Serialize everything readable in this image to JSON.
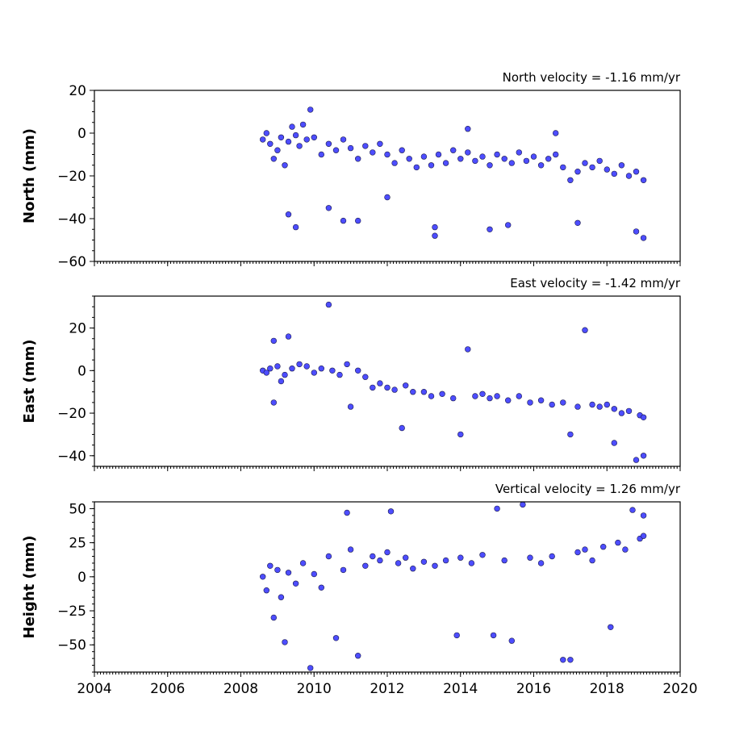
{
  "chart_data": {
    "type": "scatter",
    "point_color": "#4d4dff",
    "point_edge_color": "#1a1a4d",
    "x_axis": {
      "xlim": [
        2004,
        2020
      ],
      "ticks": [
        2004,
        2006,
        2008,
        2010,
        2012,
        2014,
        2016,
        2018,
        2020
      ],
      "minor_step": 0.0833
    },
    "panels": [
      {
        "id": "north",
        "title": "North velocity = -1.16 mm/yr",
        "ylabel": "North (mm)",
        "ylim": [
          -60,
          20
        ],
        "yticks": [
          20,
          0,
          -20,
          -40,
          -60
        ],
        "minor_step": 5,
        "series": [
          {
            "x": 2008.6,
            "y": -3
          },
          {
            "x": 2008.7,
            "y": 0
          },
          {
            "x": 2008.8,
            "y": -5
          },
          {
            "x": 2008.9,
            "y": -12
          },
          {
            "x": 2009.0,
            "y": -8
          },
          {
            "x": 2009.1,
            "y": -2
          },
          {
            "x": 2009.2,
            "y": -15
          },
          {
            "x": 2009.3,
            "y": -4
          },
          {
            "x": 2009.4,
            "y": 3
          },
          {
            "x": 2009.5,
            "y": -1
          },
          {
            "x": 2009.6,
            "y": -6
          },
          {
            "x": 2009.7,
            "y": 4
          },
          {
            "x": 2009.8,
            "y": -3
          },
          {
            "x": 2009.9,
            "y": 11
          },
          {
            "x": 2010.0,
            "y": -2
          },
          {
            "x": 2010.2,
            "y": -10
          },
          {
            "x": 2010.4,
            "y": -5
          },
          {
            "x": 2010.6,
            "y": -8
          },
          {
            "x": 2010.8,
            "y": -3
          },
          {
            "x": 2011.0,
            "y": -7
          },
          {
            "x": 2011.2,
            "y": -12
          },
          {
            "x": 2011.4,
            "y": -6
          },
          {
            "x": 2011.6,
            "y": -9
          },
          {
            "x": 2011.8,
            "y": -5
          },
          {
            "x": 2012.0,
            "y": -10
          },
          {
            "x": 2012.2,
            "y": -14
          },
          {
            "x": 2012.4,
            "y": -8
          },
          {
            "x": 2012.6,
            "y": -12
          },
          {
            "x": 2012.8,
            "y": -16
          },
          {
            "x": 2013.0,
            "y": -11
          },
          {
            "x": 2013.2,
            "y": -15
          },
          {
            "x": 2013.4,
            "y": -10
          },
          {
            "x": 2013.6,
            "y": -14
          },
          {
            "x": 2013.8,
            "y": -8
          },
          {
            "x": 2014.0,
            "y": -12
          },
          {
            "x": 2014.2,
            "y": -9
          },
          {
            "x": 2014.4,
            "y": -13
          },
          {
            "x": 2014.6,
            "y": -11
          },
          {
            "x": 2014.8,
            "y": -15
          },
          {
            "x": 2015.0,
            "y": -10
          },
          {
            "x": 2015.2,
            "y": -12
          },
          {
            "x": 2015.4,
            "y": -14
          },
          {
            "x": 2015.6,
            "y": -9
          },
          {
            "x": 2015.8,
            "y": -13
          },
          {
            "x": 2016.0,
            "y": -11
          },
          {
            "x": 2016.2,
            "y": -15
          },
          {
            "x": 2016.4,
            "y": -12
          },
          {
            "x": 2016.6,
            "y": -10
          },
          {
            "x": 2016.8,
            "y": -16
          },
          {
            "x": 2017.0,
            "y": -22
          },
          {
            "x": 2017.2,
            "y": -18
          },
          {
            "x": 2017.4,
            "y": -14
          },
          {
            "x": 2017.6,
            "y": -16
          },
          {
            "x": 2017.8,
            "y": -13
          },
          {
            "x": 2018.0,
            "y": -17
          },
          {
            "x": 2018.2,
            "y": -19
          },
          {
            "x": 2018.4,
            "y": -15
          },
          {
            "x": 2018.6,
            "y": -20
          },
          {
            "x": 2018.8,
            "y": -18
          },
          {
            "x": 2019.0,
            "y": -22
          },
          {
            "x": 2009.5,
            "y": -44
          },
          {
            "x": 2009.3,
            "y": -38
          },
          {
            "x": 2010.8,
            "y": -41
          },
          {
            "x": 2011.2,
            "y": -41
          },
          {
            "x": 2013.3,
            "y": -48
          },
          {
            "x": 2013.3,
            "y": -44
          },
          {
            "x": 2014.8,
            "y": -45
          },
          {
            "x": 2015.3,
            "y": -43
          },
          {
            "x": 2017.2,
            "y": -42
          },
          {
            "x": 2018.8,
            "y": -46
          },
          {
            "x": 2019.0,
            "y": -49
          },
          {
            "x": 2014.2,
            "y": 2
          },
          {
            "x": 2016.6,
            "y": 0
          },
          {
            "x": 2012.0,
            "y": -30
          },
          {
            "x": 2010.4,
            "y": -35
          }
        ]
      },
      {
        "id": "east",
        "title": "East velocity = -1.42 mm/yr",
        "ylabel": "East (mm)",
        "ylim": [
          -45,
          35
        ],
        "yticks": [
          20,
          0,
          -20,
          -40
        ],
        "minor_step": 5,
        "series": [
          {
            "x": 2008.6,
            "y": 0
          },
          {
            "x": 2008.7,
            "y": -1
          },
          {
            "x": 2008.8,
            "y": 1
          },
          {
            "x": 2008.9,
            "y": 14
          },
          {
            "x": 2008.9,
            "y": -15
          },
          {
            "x": 2009.0,
            "y": 2
          },
          {
            "x": 2009.1,
            "y": -5
          },
          {
            "x": 2009.2,
            "y": -2
          },
          {
            "x": 2009.3,
            "y": 16
          },
          {
            "x": 2009.4,
            "y": 1
          },
          {
            "x": 2009.6,
            "y": 3
          },
          {
            "x": 2009.8,
            "y": 2
          },
          {
            "x": 2010.0,
            "y": -1
          },
          {
            "x": 2010.2,
            "y": 1
          },
          {
            "x": 2010.4,
            "y": 31
          },
          {
            "x": 2010.5,
            "y": 0
          },
          {
            "x": 2010.7,
            "y": -2
          },
          {
            "x": 2010.9,
            "y": 3
          },
          {
            "x": 2011.0,
            "y": -17
          },
          {
            "x": 2011.2,
            "y": 0
          },
          {
            "x": 2011.4,
            "y": -3
          },
          {
            "x": 2011.6,
            "y": -8
          },
          {
            "x": 2011.8,
            "y": -6
          },
          {
            "x": 2012.0,
            "y": -8
          },
          {
            "x": 2012.2,
            "y": -9
          },
          {
            "x": 2012.4,
            "y": -27
          },
          {
            "x": 2012.5,
            "y": -7
          },
          {
            "x": 2012.7,
            "y": -10
          },
          {
            "x": 2013.0,
            "y": -10
          },
          {
            "x": 2013.2,
            "y": -12
          },
          {
            "x": 2013.5,
            "y": -11
          },
          {
            "x": 2013.8,
            "y": -13
          },
          {
            "x": 2014.0,
            "y": -30
          },
          {
            "x": 2014.2,
            "y": 10
          },
          {
            "x": 2014.4,
            "y": -12
          },
          {
            "x": 2014.6,
            "y": -11
          },
          {
            "x": 2014.8,
            "y": -13
          },
          {
            "x": 2015.0,
            "y": -12
          },
          {
            "x": 2015.3,
            "y": -14
          },
          {
            "x": 2015.6,
            "y": -12
          },
          {
            "x": 2015.9,
            "y": -15
          },
          {
            "x": 2016.2,
            "y": -14
          },
          {
            "x": 2016.5,
            "y": -16
          },
          {
            "x": 2016.8,
            "y": -15
          },
          {
            "x": 2017.0,
            "y": -30
          },
          {
            "x": 2017.2,
            "y": -17
          },
          {
            "x": 2017.4,
            "y": 19
          },
          {
            "x": 2017.6,
            "y": -16
          },
          {
            "x": 2017.8,
            "y": -17
          },
          {
            "x": 2018.0,
            "y": -16
          },
          {
            "x": 2018.2,
            "y": -18
          },
          {
            "x": 2018.4,
            "y": -20
          },
          {
            "x": 2018.6,
            "y": -19
          },
          {
            "x": 2018.8,
            "y": -42
          },
          {
            "x": 2018.9,
            "y": -21
          },
          {
            "x": 2019.0,
            "y": -40
          },
          {
            "x": 2019.0,
            "y": -22
          },
          {
            "x": 2018.2,
            "y": -34
          }
        ]
      },
      {
        "id": "height",
        "title": "Vertical velocity = 1.26 mm/yr",
        "ylabel": "Height (mm)",
        "ylim": [
          -70,
          55
        ],
        "yticks": [
          50,
          25,
          0,
          -25,
          -50
        ],
        "minor_step": 5,
        "series": [
          {
            "x": 2008.6,
            "y": 0
          },
          {
            "x": 2008.7,
            "y": -10
          },
          {
            "x": 2008.8,
            "y": 8
          },
          {
            "x": 2008.9,
            "y": -30
          },
          {
            "x": 2009.0,
            "y": 5
          },
          {
            "x": 2009.1,
            "y": -15
          },
          {
            "x": 2009.2,
            "y": -48
          },
          {
            "x": 2009.3,
            "y": 3
          },
          {
            "x": 2009.5,
            "y": -5
          },
          {
            "x": 2009.7,
            "y": 10
          },
          {
            "x": 2009.9,
            "y": -67
          },
          {
            "x": 2010.0,
            "y": 2
          },
          {
            "x": 2010.2,
            "y": -8
          },
          {
            "x": 2010.4,
            "y": 15
          },
          {
            "x": 2010.6,
            "y": -45
          },
          {
            "x": 2010.8,
            "y": 5
          },
          {
            "x": 2010.9,
            "y": 47
          },
          {
            "x": 2011.0,
            "y": 20
          },
          {
            "x": 2011.2,
            "y": -58
          },
          {
            "x": 2011.4,
            "y": 8
          },
          {
            "x": 2011.6,
            "y": 15
          },
          {
            "x": 2011.8,
            "y": 12
          },
          {
            "x": 2012.0,
            "y": 18
          },
          {
            "x": 2012.1,
            "y": 48
          },
          {
            "x": 2012.3,
            "y": 10
          },
          {
            "x": 2012.5,
            "y": 14
          },
          {
            "x": 2012.7,
            "y": 6
          },
          {
            "x": 2013.0,
            "y": 11
          },
          {
            "x": 2013.3,
            "y": 8
          },
          {
            "x": 2013.6,
            "y": 12
          },
          {
            "x": 2013.9,
            "y": -43
          },
          {
            "x": 2014.0,
            "y": 14
          },
          {
            "x": 2014.3,
            "y": 10
          },
          {
            "x": 2014.6,
            "y": 16
          },
          {
            "x": 2014.9,
            "y": -43
          },
          {
            "x": 2015.0,
            "y": 50
          },
          {
            "x": 2015.2,
            "y": 12
          },
          {
            "x": 2015.4,
            "y": -47
          },
          {
            "x": 2015.7,
            "y": 53
          },
          {
            "x": 2015.9,
            "y": 14
          },
          {
            "x": 2016.2,
            "y": 10
          },
          {
            "x": 2016.5,
            "y": 15
          },
          {
            "x": 2016.8,
            "y": -61
          },
          {
            "x": 2017.0,
            "y": -61
          },
          {
            "x": 2017.2,
            "y": 18
          },
          {
            "x": 2017.4,
            "y": 20
          },
          {
            "x": 2017.6,
            "y": 12
          },
          {
            "x": 2017.9,
            "y": 22
          },
          {
            "x": 2018.1,
            "y": -37
          },
          {
            "x": 2018.3,
            "y": 25
          },
          {
            "x": 2018.5,
            "y": 20
          },
          {
            "x": 2018.7,
            "y": 49
          },
          {
            "x": 2018.9,
            "y": 28
          },
          {
            "x": 2019.0,
            "y": 30
          },
          {
            "x": 2019.0,
            "y": 45
          }
        ]
      }
    ]
  }
}
